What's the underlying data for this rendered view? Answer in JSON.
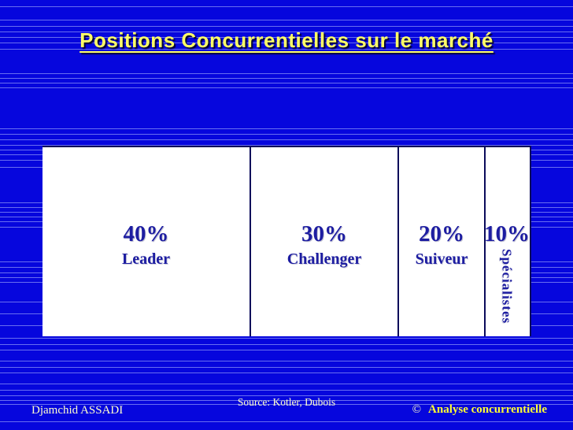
{
  "slide": {
    "title": "Positions Concurrentielles sur le marché",
    "footer": {
      "author": "Djamchid ASSADI",
      "source": "Source: Kotler, Dubois",
      "copyright_symbol": "©",
      "copyright_text": "Analyse concurrentielle"
    }
  },
  "chart_data": {
    "type": "bar",
    "title": "Positions Concurrentielles sur le marché",
    "subtitle": "",
    "categories": [
      "Leader",
      "Challenger",
      "Suiveur",
      "Spécialistes"
    ],
    "values": [
      40,
      30,
      20,
      10
    ],
    "unit": "%",
    "layout": "single horizontal band split into proportional segments (marimekko-style), widths proportional to values; percent shown above category name inside each segment; last segment label rotated vertical",
    "source": "Source: Kotler, Dubois",
    "segments": [
      {
        "label": "Leader",
        "value": 40,
        "value_label": "40%"
      },
      {
        "label": "Challenger",
        "value": 30,
        "value_label": "30%"
      },
      {
        "label": "Suiveur",
        "value": 20,
        "value_label": "20%"
      },
      {
        "label": "Spécialistes",
        "value": 10,
        "value_label": "10%"
      }
    ],
    "colors": {
      "background_blue": "#0606DD",
      "pinstripe_blue": "#B9C4FF",
      "band_fill": "#FFFFFF",
      "band_border_navy": "#0A0A5A",
      "segment_text_navy": "#1D1DA1",
      "title_yellow": "#FFFF66",
      "footer_pale_yellow": "#FFFFCC",
      "copyright_yellow": "#FFFF33"
    }
  }
}
